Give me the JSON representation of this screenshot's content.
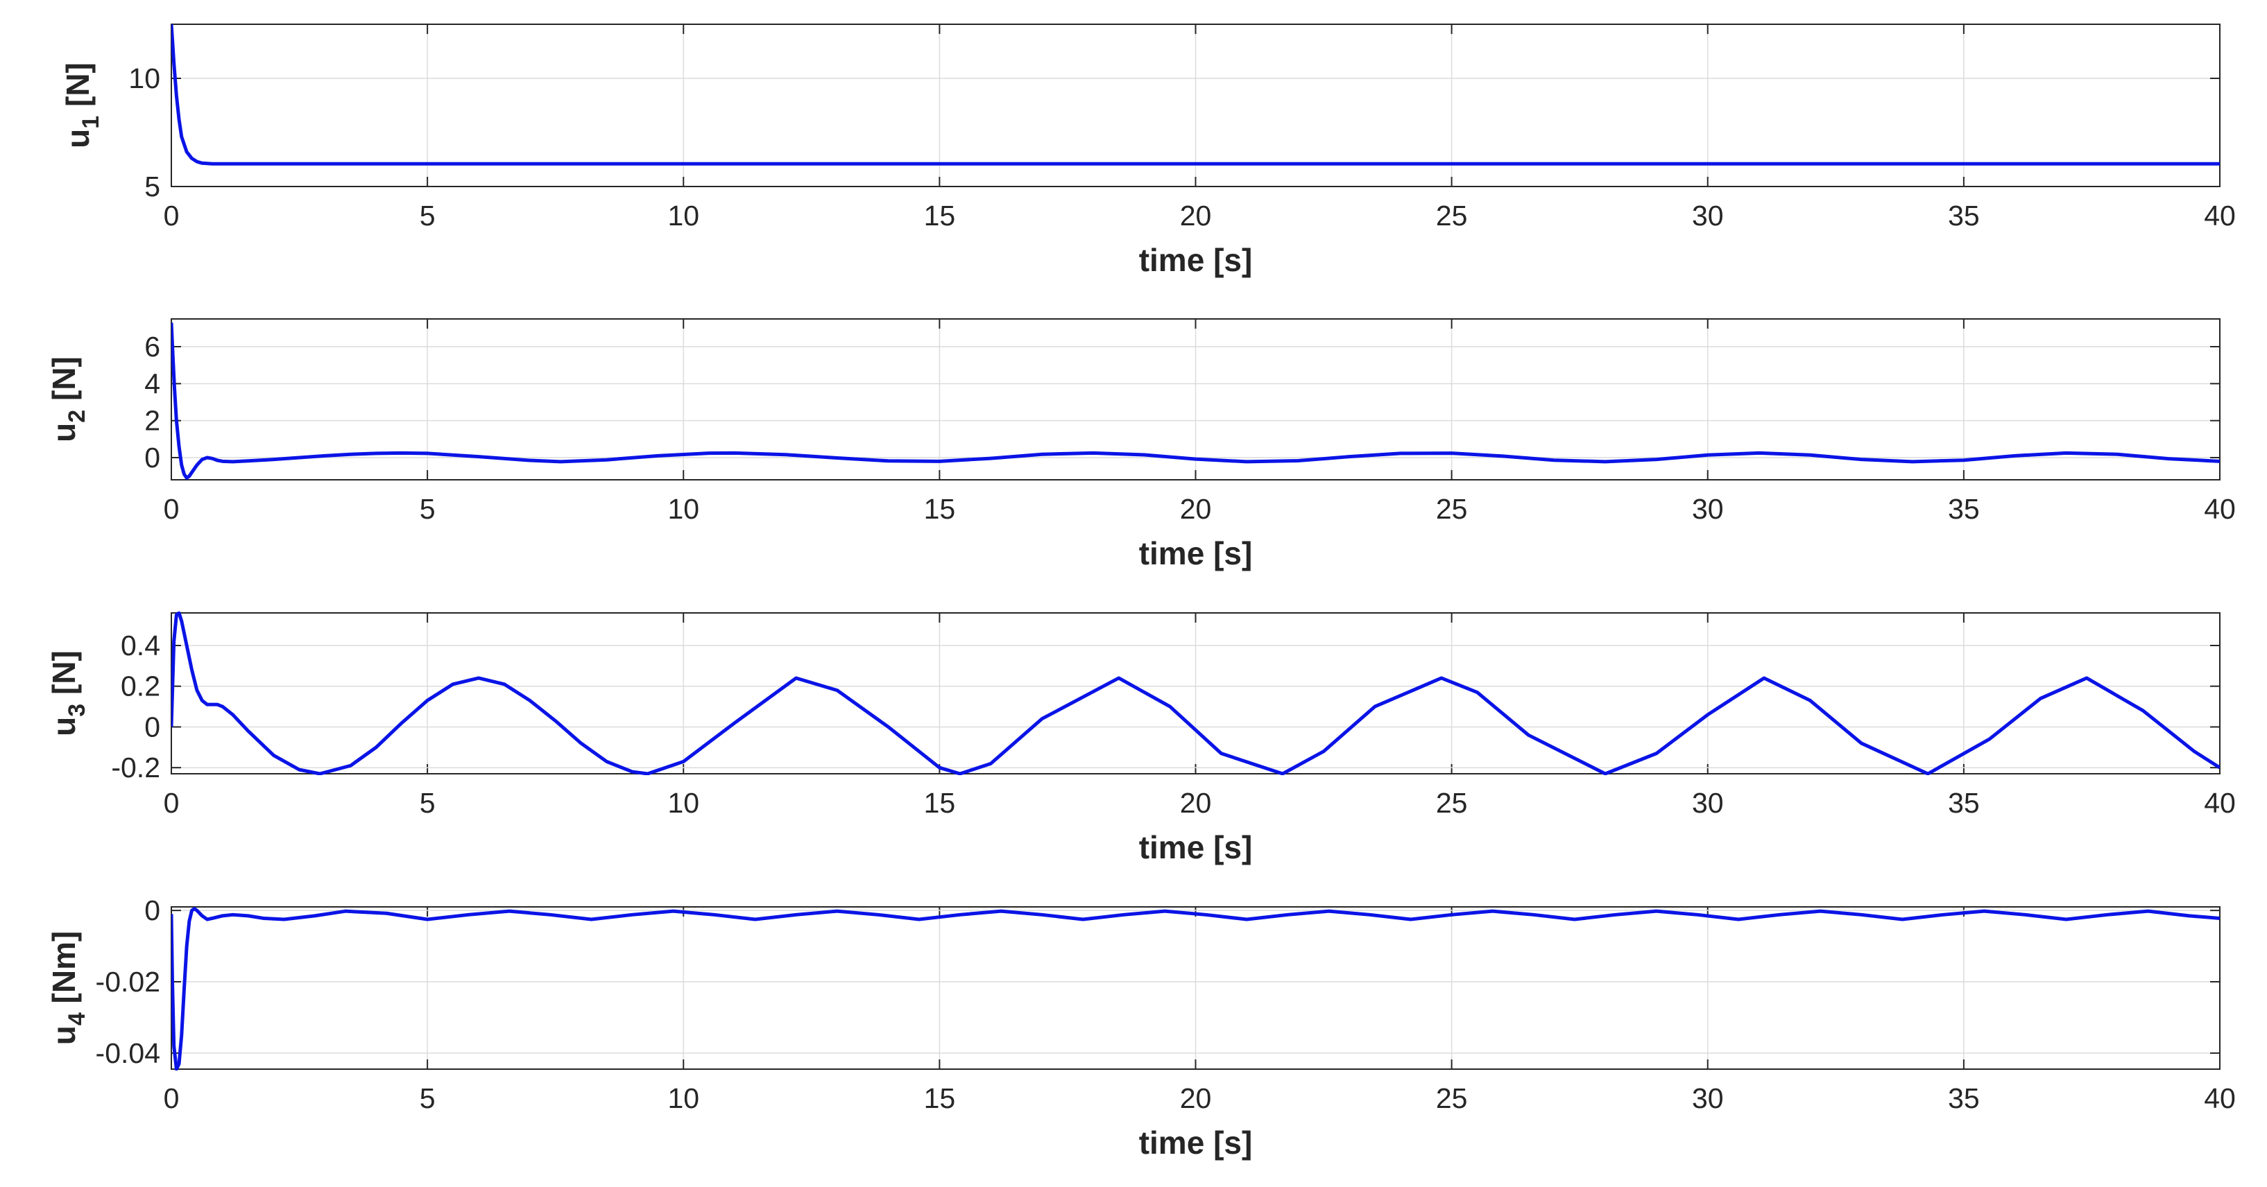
{
  "chart_data": [
    {
      "type": "line",
      "title": "",
      "xlabel": "time [s]",
      "ylabel": "u",
      "ylabel_sub": "1",
      "ylabel_unit": "[N]",
      "xlim": [
        0,
        40
      ],
      "ylim": [
        5,
        12.5
      ],
      "xticks": [
        0,
        5,
        10,
        15,
        20,
        25,
        30,
        35,
        40
      ],
      "yticks": [
        5,
        10
      ],
      "grid": true,
      "series": [
        {
          "name": "u1",
          "color": "#0a14e6",
          "x": [
            0,
            0.02,
            0.05,
            0.1,
            0.15,
            0.2,
            0.3,
            0.4,
            0.5,
            0.6,
            0.8,
            1.0,
            1.5,
            2,
            5,
            10,
            15,
            20,
            25,
            30,
            35,
            40
          ],
          "y": [
            12.5,
            11.8,
            10.7,
            9.2,
            8.1,
            7.3,
            6.6,
            6.3,
            6.15,
            6.08,
            6.05,
            6.05,
            6.05,
            6.05,
            6.05,
            6.05,
            6.05,
            6.05,
            6.05,
            6.05,
            6.05,
            6.05
          ]
        }
      ]
    },
    {
      "type": "line",
      "title": "",
      "xlabel": "time [s]",
      "ylabel": "u",
      "ylabel_sub": "2",
      "ylabel_unit": "[N]",
      "xlim": [
        0,
        40
      ],
      "ylim": [
        -1.2,
        7.5
      ],
      "xticks": [
        0,
        5,
        10,
        15,
        20,
        25,
        30,
        35,
        40
      ],
      "yticks": [
        0,
        2,
        4,
        6
      ],
      "grid": true,
      "series": [
        {
          "name": "u2",
          "color": "#0a14e6",
          "x": [
            0,
            0.03,
            0.06,
            0.1,
            0.15,
            0.2,
            0.25,
            0.3,
            0.35,
            0.4,
            0.5,
            0.6,
            0.7,
            0.8,
            0.9,
            1.0,
            1.2,
            1.5,
            2.0,
            2.5,
            3.0,
            3.5,
            4.0,
            4.5,
            5.0,
            6.0,
            7.0,
            7.6,
            8.5,
            9.5,
            10.5,
            11.0,
            12.0,
            13.0,
            14.0,
            15.0,
            16.0,
            17.0,
            18.0,
            19.0,
            20.0,
            21.0,
            22.0,
            23.0,
            24.0,
            25.0,
            26.0,
            27.0,
            28.0,
            29.0,
            30.0,
            31.0,
            32.0,
            33.0,
            34.0,
            35.0,
            36.0,
            37.0,
            38.0,
            39.0,
            40.0
          ],
          "y": [
            7.3,
            5.5,
            3.8,
            2.0,
            0.6,
            -0.4,
            -0.9,
            -1.1,
            -1.0,
            -0.8,
            -0.4,
            -0.1,
            0.0,
            -0.05,
            -0.15,
            -0.2,
            -0.22,
            -0.18,
            -0.1,
            0.0,
            0.1,
            0.18,
            0.23,
            0.25,
            0.23,
            0.05,
            -0.15,
            -0.22,
            -0.12,
            0.1,
            0.24,
            0.25,
            0.16,
            -0.02,
            -0.18,
            -0.2,
            -0.04,
            0.18,
            0.25,
            0.15,
            -0.08,
            -0.22,
            -0.17,
            0.05,
            0.23,
            0.24,
            0.08,
            -0.14,
            -0.22,
            -0.1,
            0.14,
            0.25,
            0.14,
            -0.1,
            -0.22,
            -0.14,
            0.1,
            0.25,
            0.18,
            -0.06,
            -0.2
          ]
        }
      ]
    },
    {
      "type": "line",
      "title": "",
      "xlabel": "time [s]",
      "ylabel": "u",
      "ylabel_sub": "3",
      "ylabel_unit": "[N]",
      "xlim": [
        0,
        40
      ],
      "ylim": [
        -0.23,
        0.56
      ],
      "xticks": [
        0,
        5,
        10,
        15,
        20,
        25,
        30,
        35,
        40
      ],
      "yticks": [
        -0.2,
        0,
        0.2,
        0.4
      ],
      "grid": true,
      "series": [
        {
          "name": "u3",
          "color": "#0a14e6",
          "x": [
            0,
            0.05,
            0.1,
            0.15,
            0.2,
            0.3,
            0.4,
            0.5,
            0.6,
            0.7,
            0.8,
            0.9,
            1.0,
            1.2,
            1.5,
            2.0,
            2.5,
            2.9,
            3.5,
            4.0,
            4.5,
            5.0,
            5.5,
            6.0,
            6.5,
            7.0,
            7.5,
            8.0,
            8.5,
            9.0,
            9.3,
            10.0,
            11.0,
            12.2,
            13.0,
            14.0,
            15.0,
            15.4,
            16.0,
            17.0,
            18.5,
            19.5,
            20.5,
            21.7,
            22.5,
            23.5,
            24.8,
            25.5,
            26.5,
            28.0,
            29.0,
            30.0,
            31.1,
            32.0,
            33.0,
            34.3,
            35.5,
            36.5,
            37.4,
            38.5,
            39.5,
            40.0
          ],
          "y": [
            0.0,
            0.42,
            0.55,
            0.56,
            0.52,
            0.4,
            0.28,
            0.18,
            0.13,
            0.11,
            0.11,
            0.11,
            0.1,
            0.06,
            -0.02,
            -0.14,
            -0.21,
            -0.23,
            -0.19,
            -0.1,
            0.02,
            0.13,
            0.21,
            0.24,
            0.21,
            0.13,
            0.03,
            -0.08,
            -0.17,
            -0.22,
            -0.23,
            -0.17,
            0.02,
            0.24,
            0.18,
            0.0,
            -0.2,
            -0.23,
            -0.18,
            0.04,
            0.24,
            0.1,
            -0.13,
            -0.23,
            -0.12,
            0.1,
            0.24,
            0.17,
            -0.04,
            -0.23,
            -0.13,
            0.06,
            0.24,
            0.13,
            -0.08,
            -0.23,
            -0.06,
            0.14,
            0.24,
            0.08,
            -0.12,
            -0.2
          ]
        }
      ]
    },
    {
      "type": "line",
      "title": "",
      "xlabel": "time [s]",
      "ylabel": "u",
      "ylabel_sub": "4",
      "ylabel_unit": "[Nm]",
      "xlim": [
        0,
        40
      ],
      "ylim": [
        -0.0445,
        0.001
      ],
      "xticks": [
        0,
        5,
        10,
        15,
        20,
        25,
        30,
        35,
        40
      ],
      "yticks": [
        -0.04,
        -0.02,
        0
      ],
      "grid": true,
      "series": [
        {
          "name": "u4",
          "color": "#0a14e6",
          "x": [
            0,
            0.02,
            0.05,
            0.1,
            0.15,
            0.2,
            0.25,
            0.3,
            0.35,
            0.4,
            0.45,
            0.5,
            0.6,
            0.7,
            0.8,
            1.0,
            1.2,
            1.5,
            1.8,
            2.2,
            2.8,
            3.4,
            4.2,
            5.0,
            5.8,
            6.6,
            7.4,
            8.2,
            9.0,
            9.8,
            10.6,
            11.4,
            12.2,
            13.0,
            13.8,
            14.6,
            15.4,
            16.2,
            17.0,
            17.8,
            18.6,
            19.4,
            20.2,
            21.0,
            21.8,
            22.6,
            23.4,
            24.2,
            25.0,
            25.8,
            26.6,
            27.4,
            28.2,
            29.0,
            29.8,
            30.6,
            31.4,
            32.2,
            33.0,
            33.8,
            34.6,
            35.4,
            36.2,
            37.0,
            37.8,
            38.6,
            39.4,
            40.0
          ],
          "y": [
            -0.001,
            -0.02,
            -0.038,
            -0.0445,
            -0.043,
            -0.035,
            -0.022,
            -0.01,
            -0.003,
            0.0,
            0.0005,
            0.0,
            -0.0015,
            -0.0025,
            -0.0022,
            -0.0015,
            -0.0012,
            -0.0015,
            -0.0022,
            -0.0025,
            -0.0015,
            -0.0002,
            -0.0008,
            -0.0025,
            -0.0012,
            -0.0002,
            -0.0012,
            -0.0025,
            -0.0012,
            -0.0002,
            -0.0012,
            -0.0025,
            -0.0012,
            -0.0002,
            -0.0012,
            -0.0025,
            -0.0012,
            -0.0002,
            -0.0012,
            -0.0025,
            -0.0012,
            -0.0002,
            -0.0012,
            -0.0025,
            -0.0012,
            -0.0002,
            -0.0012,
            -0.0025,
            -0.0012,
            -0.0002,
            -0.0012,
            -0.0025,
            -0.0012,
            -0.0002,
            -0.0012,
            -0.0025,
            -0.0012,
            -0.0002,
            -0.0012,
            -0.0025,
            -0.0012,
            -0.0002,
            -0.0012,
            -0.0025,
            -0.0012,
            -0.0002,
            -0.0015,
            -0.0022
          ]
        }
      ]
    }
  ]
}
